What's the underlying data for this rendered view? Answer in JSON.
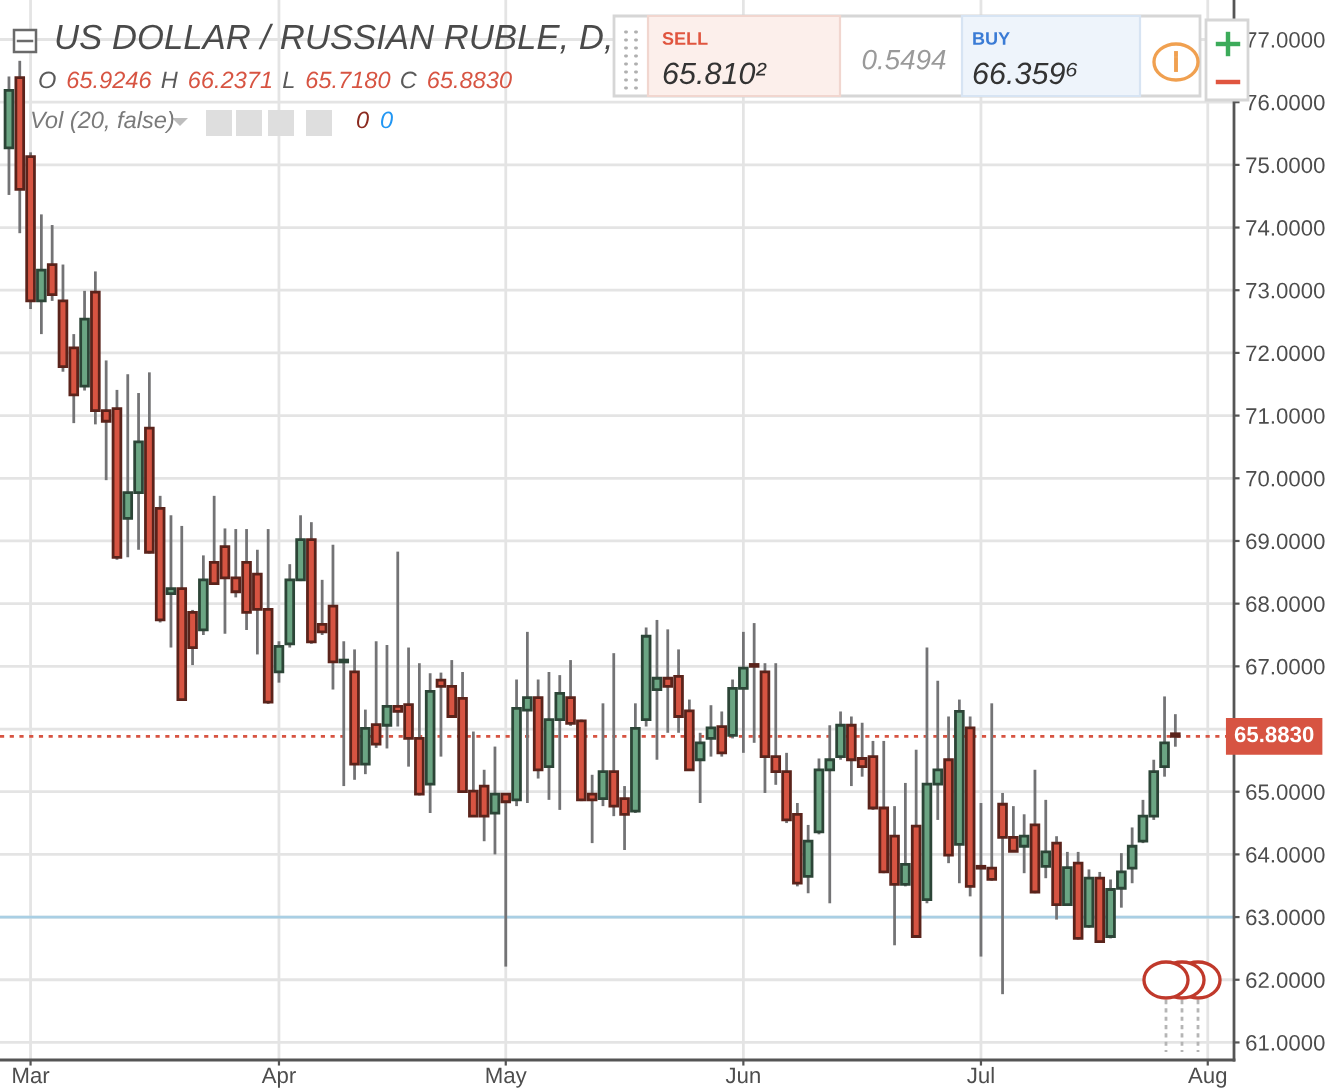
{
  "chart_data": {
    "type": "candlestick",
    "title": "US DOLLAR / RUSSIAN RUBLE, D,",
    "subtitle": "O 65.9246 H 66.2371 L 65.7180 C 65.8830",
    "annotations": [
      "Vol (20, false)",
      "0",
      "0",
      "SELL",
      "65.810²",
      "0.5494",
      "BUY",
      "66.359⁶"
    ],
    "categories": [
      null,
      null,
      "Mar",
      null,
      null,
      null,
      null,
      null,
      null,
      null,
      null,
      null,
      null,
      null,
      null,
      null,
      null,
      null,
      null,
      null,
      null,
      null,
      null,
      null,
      null,
      "Apr",
      null,
      null,
      null,
      null,
      null,
      null,
      null,
      null,
      null,
      null,
      null,
      null,
      null,
      null,
      null,
      null,
      null,
      null,
      null,
      null,
      "May",
      null,
      null,
      null,
      null,
      null,
      null,
      null,
      null,
      null,
      null,
      null,
      null,
      null,
      null,
      null,
      null,
      null,
      null,
      null,
      null,
      null,
      "Jun",
      null,
      null,
      null,
      null,
      null,
      null,
      null,
      null,
      null,
      null,
      null,
      null,
      null,
      null,
      null,
      null,
      null,
      null,
      null,
      null,
      null,
      "Jul",
      null,
      null,
      null,
      null,
      null,
      null,
      null,
      null,
      null,
      null,
      null,
      null,
      null,
      null,
      null,
      null,
      null,
      null,
      null,
      null,
      "Aug"
    ],
    "ohlc": [
      [
        75.27,
        76.41,
        74.52,
        76.19
      ],
      [
        76.39,
        76.66,
        73.91,
        74.61
      ],
      [
        75.13,
        75.2,
        72.7,
        72.83
      ],
      [
        72.83,
        74.21,
        72.3,
        73.32
      ],
      [
        73.41,
        74.04,
        72.83,
        72.93
      ],
      [
        72.83,
        73.41,
        71.7,
        71.78
      ],
      [
        72.08,
        72.3,
        70.88,
        71.33
      ],
      [
        71.47,
        72.99,
        71.4,
        72.54
      ],
      [
        72.97,
        73.3,
        70.86,
        71.08
      ],
      [
        71.08,
        71.88,
        69.97,
        70.91
      ],
      [
        71.11,
        71.41,
        68.7,
        68.74
      ],
      [
        69.36,
        71.66,
        68.74,
        69.77
      ],
      [
        69.77,
        71.36,
        68.86,
        70.58
      ],
      [
        70.8,
        71.69,
        68.8,
        68.82
      ],
      [
        69.52,
        69.72,
        67.7,
        67.74
      ],
      [
        68.16,
        69.41,
        67.3,
        68.24
      ],
      [
        68.24,
        69.24,
        66.45,
        66.47
      ],
      [
        67.86,
        67.9,
        67.02,
        67.3
      ],
      [
        67.58,
        68.77,
        67.5,
        68.38
      ],
      [
        68.66,
        69.72,
        68.3,
        68.32
      ],
      [
        68.91,
        69.2,
        67.52,
        68.41
      ],
      [
        68.41,
        69.19,
        68.1,
        68.19
      ],
      [
        68.66,
        69.19,
        67.58,
        67.86
      ],
      [
        68.47,
        68.86,
        67.19,
        67.91
      ],
      [
        67.91,
        69.19,
        66.4,
        66.43
      ],
      [
        66.91,
        67.4,
        66.74,
        67.32
      ],
      [
        67.36,
        68.63,
        67.3,
        68.38
      ],
      [
        68.38,
        69.41,
        68.36,
        69.02
      ],
      [
        69.02,
        69.3,
        67.36,
        67.39
      ],
      [
        67.67,
        68.38,
        67.5,
        67.55
      ],
      [
        67.96,
        68.94,
        66.63,
        67.07
      ],
      [
        67.07,
        67.4,
        65.09,
        67.1
      ],
      [
        66.91,
        67.27,
        65.19,
        65.44
      ],
      [
        65.44,
        66.31,
        65.28,
        66.01
      ],
      [
        66.07,
        67.4,
        65.7,
        65.76
      ],
      [
        66.06,
        67.34,
        65.69,
        66.36
      ],
      [
        66.36,
        68.83,
        66.04,
        66.28
      ],
      [
        66.39,
        67.3,
        65.4,
        65.85
      ],
      [
        65.85,
        67.05,
        64.94,
        64.96
      ],
      [
        65.12,
        66.89,
        64.66,
        66.6
      ],
      [
        66.78,
        66.9,
        65.56,
        66.68
      ],
      [
        66.68,
        67.1,
        66.18,
        66.2
      ],
      [
        66.49,
        66.91,
        64.98,
        65.0
      ],
      [
        65.01,
        65.96,
        64.6,
        64.61
      ],
      [
        65.09,
        65.35,
        64.21,
        64.61
      ],
      [
        64.66,
        65.72,
        64.0,
        64.96
      ],
      [
        64.96,
        64.97,
        62.21,
        64.84
      ],
      [
        64.87,
        66.79,
        64.77,
        66.33
      ],
      [
        66.3,
        67.55,
        64.82,
        66.5
      ],
      [
        66.5,
        66.79,
        65.21,
        65.35
      ],
      [
        65.4,
        66.91,
        64.87,
        66.15
      ],
      [
        66.15,
        66.86,
        64.71,
        66.57
      ],
      [
        66.5,
        67.1,
        66.05,
        66.09
      ],
      [
        66.13,
        66.15,
        64.85,
        64.87
      ],
      [
        64.96,
        65.27,
        64.18,
        64.87
      ],
      [
        64.89,
        66.41,
        64.77,
        65.32
      ],
      [
        65.32,
        67.21,
        64.61,
        64.77
      ],
      [
        64.89,
        65.09,
        64.07,
        64.64
      ],
      [
        64.69,
        66.41,
        64.66,
        66.01
      ],
      [
        66.15,
        67.62,
        66.04,
        67.48
      ],
      [
        66.63,
        67.74,
        65.51,
        66.81
      ],
      [
        66.81,
        67.59,
        65.94,
        66.68
      ],
      [
        66.84,
        67.27,
        65.94,
        66.2
      ],
      [
        66.29,
        66.47,
        65.33,
        65.35
      ],
      [
        65.51,
        65.94,
        64.82,
        65.78
      ],
      [
        65.85,
        66.38,
        65.56,
        66.02
      ],
      [
        66.04,
        66.28,
        65.56,
        65.62
      ],
      [
        65.9,
        66.79,
        65.85,
        66.65
      ],
      [
        66.65,
        67.55,
        65.62,
        66.97
      ],
      [
        67.03,
        67.69,
        65.78,
        67.0
      ],
      [
        66.91,
        67.05,
        64.98,
        65.56
      ],
      [
        65.56,
        67.05,
        65.11,
        65.32
      ],
      [
        65.32,
        65.62,
        64.5,
        64.55
      ],
      [
        64.64,
        64.82,
        63.49,
        63.54
      ],
      [
        63.65,
        64.47,
        63.38,
        64.21
      ],
      [
        64.36,
        65.53,
        64.32,
        65.35
      ],
      [
        65.35,
        66.06,
        63.22,
        65.51
      ],
      [
        65.56,
        66.28,
        65.51,
        66.06
      ],
      [
        66.06,
        66.2,
        65.09,
        65.51
      ],
      [
        65.53,
        66.1,
        65.24,
        65.4
      ],
      [
        65.56,
        65.81,
        64.71,
        64.74
      ],
      [
        64.74,
        65.81,
        63.7,
        63.72
      ],
      [
        64.29,
        64.77,
        62.55,
        63.52
      ],
      [
        63.52,
        65.14,
        63.49,
        63.84
      ],
      [
        64.45,
        65.67,
        62.68,
        62.69
      ],
      [
        63.28,
        67.3,
        63.22,
        65.12
      ],
      [
        65.12,
        66.77,
        64.55,
        65.35
      ],
      [
        65.51,
        66.2,
        63.86,
        63.99
      ],
      [
        64.16,
        66.47,
        63.54,
        66.28
      ],
      [
        66.02,
        66.2,
        63.33,
        63.49
      ],
      [
        63.81,
        64.82,
        62.37,
        63.78
      ],
      [
        63.78,
        66.41,
        63.58,
        63.6
      ],
      [
        64.8,
        64.98,
        61.77,
        64.27
      ],
      [
        64.27,
        64.77,
        64.04,
        64.05
      ],
      [
        64.13,
        64.64,
        63.7,
        64.29
      ],
      [
        64.47,
        65.35,
        63.38,
        63.4
      ],
      [
        63.81,
        64.87,
        63.62,
        64.04
      ],
      [
        64.18,
        64.29,
        62.96,
        63.2
      ],
      [
        63.2,
        64.04,
        63.19,
        63.79
      ],
      [
        63.86,
        64.04,
        62.64,
        62.66
      ],
      [
        62.85,
        63.76,
        62.83,
        63.62
      ],
      [
        63.62,
        63.72,
        62.59,
        62.61
      ],
      [
        62.69,
        63.6,
        62.66,
        63.44
      ],
      [
        63.46,
        64.02,
        63.15,
        63.72
      ],
      [
        63.78,
        64.43,
        63.54,
        64.13
      ],
      [
        64.21,
        64.87,
        64.18,
        64.61
      ],
      [
        64.61,
        65.51,
        64.55,
        65.32
      ],
      [
        65.4,
        66.52,
        65.24,
        65.78
      ],
      [
        65.9246,
        66.2371,
        65.718,
        65.883
      ],
      null,
      null,
      null
    ],
    "colors": [
      "#6ba583",
      "#d75442",
      "#d75442",
      "#6ba583",
      "#d75442",
      "#d75442",
      "#d75442",
      "#6ba583",
      "#d75442",
      "#d75442",
      "#d75442",
      "#6ba583",
      "#6ba583",
      "#d75442",
      "#d75442",
      "#6ba583",
      "#d75442",
      "#d75442",
      "#6ba583",
      "#d75442",
      "#d75442",
      "#d75442",
      "#d75442",
      "#d75442",
      "#d75442",
      "#6ba583",
      "#6ba583",
      "#6ba583",
      "#d75442",
      "#d75442",
      "#d75442",
      "#6ba583",
      "#d75442",
      "#6ba583",
      "#d75442",
      "#6ba583",
      "#d75442",
      "#d75442",
      "#d75442",
      "#6ba583",
      "#d75442",
      "#d75442",
      "#d75442",
      "#d75442",
      "#d75442",
      "#6ba583",
      "#d75442",
      "#6ba583",
      "#6ba583",
      "#d75442",
      "#6ba583",
      "#6ba583",
      "#d75442",
      "#d75442",
      "#d75442",
      "#6ba583",
      "#d75442",
      "#d75442",
      "#6ba583",
      "#6ba583",
      "#6ba583",
      "#d75442",
      "#d75442",
      "#d75442",
      "#6ba583",
      "#6ba583",
      "#d75442",
      "#6ba583",
      "#6ba583",
      "#d75442",
      "#d75442",
      "#d75442",
      "#d75442",
      "#d75442",
      "#6ba583",
      "#6ba583",
      "#6ba583",
      "#6ba583",
      "#d75442",
      "#d75442",
      "#d75442",
      "#d75442",
      "#d75442",
      "#6ba583",
      "#d75442",
      "#6ba583",
      "#6ba583",
      "#d75442",
      "#6ba583",
      "#d75442",
      "#d75442",
      "#d75442",
      "#d75442",
      "#d75442",
      "#6ba583",
      "#d75442",
      "#6ba583",
      "#d75442",
      "#6ba583",
      "#d75442",
      "#6ba583",
      "#d75442",
      "#6ba583",
      "#6ba583",
      "#6ba583",
      "#6ba583",
      "#6ba583",
      "#6ba583",
      "#d75442",
      null,
      null,
      null
    ],
    "ylim": [
      60.72,
      77.63
    ],
    "yticks": [
      {
        "value": 61,
        "label": "61.0000"
      },
      {
        "value": 62,
        "label": "62.0000"
      },
      {
        "value": 63,
        "label": "63.0000"
      },
      {
        "value": 64,
        "label": "64.0000"
      },
      {
        "value": 65,
        "label": "65.0000"
      },
      {
        "value": 66,
        "label": null
      },
      {
        "value": 67,
        "label": "67.0000"
      },
      {
        "value": 68,
        "label": "68.0000"
      },
      {
        "value": 69,
        "label": "69.0000"
      },
      {
        "value": 70,
        "label": "70.0000"
      },
      {
        "value": 71,
        "label": "71.0000"
      },
      {
        "value": 72,
        "label": "72.0000"
      },
      {
        "value": 73,
        "label": "73.0000"
      },
      {
        "value": 74,
        "label": "74.0000"
      },
      {
        "value": 75,
        "label": "75.0000"
      },
      {
        "value": 76,
        "label": "76.0000"
      },
      {
        "value": 77,
        "label": "77.0000"
      }
    ],
    "ref_lines": [
      {
        "axis": "y",
        "value": 65.883,
        "label": "65.8830",
        "color": "#d75442",
        "line_style": "dotted"
      },
      {
        "axis": "y",
        "value": 63.0,
        "color": "#a9cfe4",
        "line_style": "solid"
      }
    ],
    "grid": true
  }
}
